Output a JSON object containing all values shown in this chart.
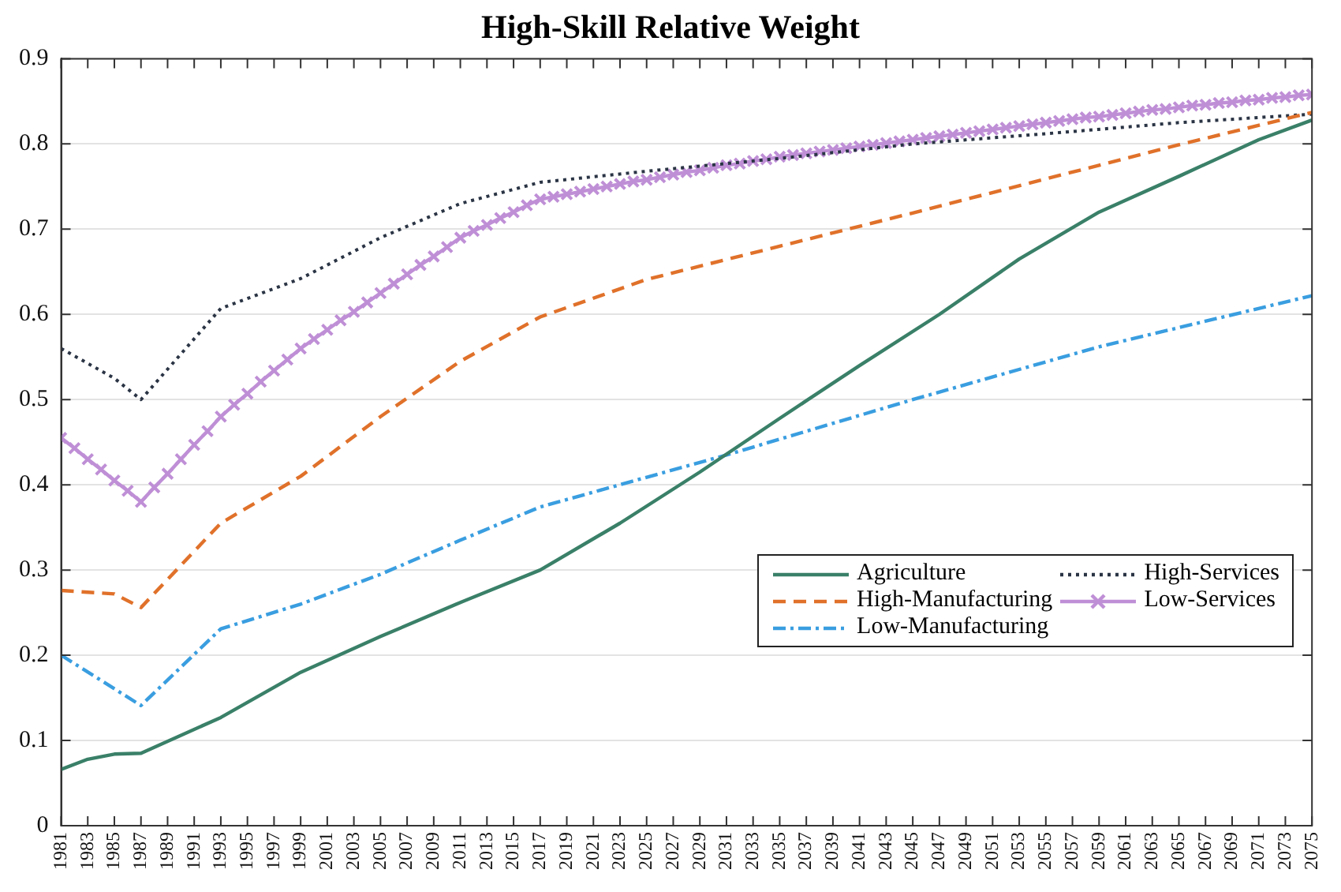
{
  "chart_data": {
    "type": "line",
    "title": "High-Skill Relative Weight",
    "xlim": [
      1981,
      2075
    ],
    "xticks": [
      1981,
      1983,
      1985,
      1987,
      1989,
      1991,
      1993,
      1995,
      1997,
      1999,
      2001,
      2003,
      2005,
      2007,
      2009,
      2011,
      2013,
      2015,
      2017,
      2019,
      2021,
      2023,
      2025,
      2027,
      2029,
      2031,
      2033,
      2035,
      2037,
      2039,
      2041,
      2043,
      2045,
      2047,
      2049,
      2051,
      2053,
      2055,
      2057,
      2059,
      2061,
      2063,
      2065,
      2067,
      2069,
      2071,
      2073,
      2075
    ],
    "ylim": [
      0,
      0.9
    ],
    "yticks": [
      0,
      0.1,
      0.2,
      0.3,
      0.4,
      0.5,
      0.6,
      0.7,
      0.8,
      0.9
    ],
    "grid": "y",
    "legend": "bottom right",
    "series": [
      {
        "name": "Agriculture",
        "color": "#3a8068",
        "line_style": "solid",
        "marker": "none",
        "x": [
          1981,
          1983,
          1985,
          1987,
          1993,
          1999,
          2005,
          2011,
          2017,
          2023,
          2029,
          2035,
          2041,
          2047,
          2053,
          2059,
          2065,
          2071,
          2075
        ],
        "values": [
          0.066,
          0.078,
          0.084,
          0.085,
          0.127,
          0.18,
          0.222,
          0.262,
          0.3,
          0.355,
          0.415,
          0.478,
          0.54,
          0.6,
          0.665,
          0.72,
          0.762,
          0.805,
          0.828
        ]
      },
      {
        "name": "High-Manufacturing",
        "color": "#e0712a",
        "line_style": "dashed",
        "marker": "none",
        "x": [
          1981,
          1985,
          1987,
          1993,
          1999,
          2005,
          2011,
          2017,
          2025,
          2035,
          2045,
          2055,
          2065,
          2075
        ],
        "values": [
          0.276,
          0.272,
          0.256,
          0.355,
          0.41,
          0.48,
          0.545,
          0.597,
          0.641,
          0.68,
          0.719,
          0.759,
          0.799,
          0.837
        ]
      },
      {
        "name": "Low-Manufacturing",
        "color": "#3a9ee0",
        "line_style": "dashdot",
        "marker": "none",
        "x": [
          1981,
          1987,
          1993,
          1999,
          2005,
          2011,
          2017,
          2031,
          2045,
          2059,
          2075
        ],
        "values": [
          0.2,
          0.141,
          0.231,
          0.26,
          0.295,
          0.335,
          0.374,
          0.435,
          0.5,
          0.562,
          0.622
        ]
      },
      {
        "name": "High-Services",
        "color": "#2a3444",
        "line_style": "dotted",
        "marker": "none",
        "x": [
          1981,
          1985,
          1987,
          1993,
          1999,
          2005,
          2011,
          2017,
          2025,
          2035,
          2045,
          2055,
          2065,
          2075
        ],
        "values": [
          0.56,
          0.525,
          0.5,
          0.607,
          0.642,
          0.69,
          0.73,
          0.755,
          0.768,
          0.783,
          0.8,
          0.812,
          0.825,
          0.835
        ]
      },
      {
        "name": "Low-Services",
        "color": "#bf8fd6",
        "line_style": "solid",
        "marker": "cross",
        "x": [
          1981,
          1982,
          1983,
          1984,
          1985,
          1986,
          1987,
          1988,
          1989,
          1990,
          1991,
          1992,
          1993,
          1994,
          1995,
          1996,
          1997,
          1998,
          1999,
          2000,
          2001,
          2002,
          2003,
          2004,
          2005,
          2006,
          2007,
          2008,
          2009,
          2010,
          2011,
          2012,
          2013,
          2014,
          2015,
          2016,
          2017,
          2018,
          2019,
          2020,
          2021,
          2022,
          2023,
          2024,
          2025,
          2026,
          2027,
          2028,
          2029,
          2030,
          2031,
          2032,
          2033,
          2034,
          2035,
          2036,
          2037,
          2038,
          2039,
          2040,
          2041,
          2042,
          2043,
          2044,
          2045,
          2046,
          2047,
          2048,
          2049,
          2050,
          2051,
          2052,
          2053,
          2054,
          2055,
          2056,
          2057,
          2058,
          2059,
          2060,
          2061,
          2062,
          2063,
          2064,
          2065,
          2066,
          2067,
          2068,
          2069,
          2070,
          2071,
          2072,
          2073,
          2074,
          2075
        ],
        "values": [
          0.455,
          0.443,
          0.43,
          0.418,
          0.405,
          0.393,
          0.38,
          0.397,
          0.413,
          0.43,
          0.447,
          0.463,
          0.48,
          0.494,
          0.507,
          0.521,
          0.534,
          0.547,
          0.56,
          0.571,
          0.582,
          0.593,
          0.603,
          0.614,
          0.625,
          0.636,
          0.647,
          0.658,
          0.668,
          0.679,
          0.69,
          0.698,
          0.705,
          0.713,
          0.72,
          0.728,
          0.735,
          0.738,
          0.741,
          0.744,
          0.747,
          0.75,
          0.753,
          0.756,
          0.758,
          0.761,
          0.764,
          0.767,
          0.769,
          0.772,
          0.775,
          0.777,
          0.78,
          0.782,
          0.785,
          0.787,
          0.789,
          0.791,
          0.793,
          0.795,
          0.797,
          0.799,
          0.801,
          0.803,
          0.805,
          0.807,
          0.809,
          0.811,
          0.813,
          0.815,
          0.817,
          0.819,
          0.821,
          0.823,
          0.825,
          0.827,
          0.829,
          0.831,
          0.832,
          0.834,
          0.836,
          0.838,
          0.84,
          0.841,
          0.843,
          0.845,
          0.846,
          0.848,
          0.849,
          0.851,
          0.852,
          0.854,
          0.855,
          0.857,
          0.858
        ]
      }
    ]
  }
}
